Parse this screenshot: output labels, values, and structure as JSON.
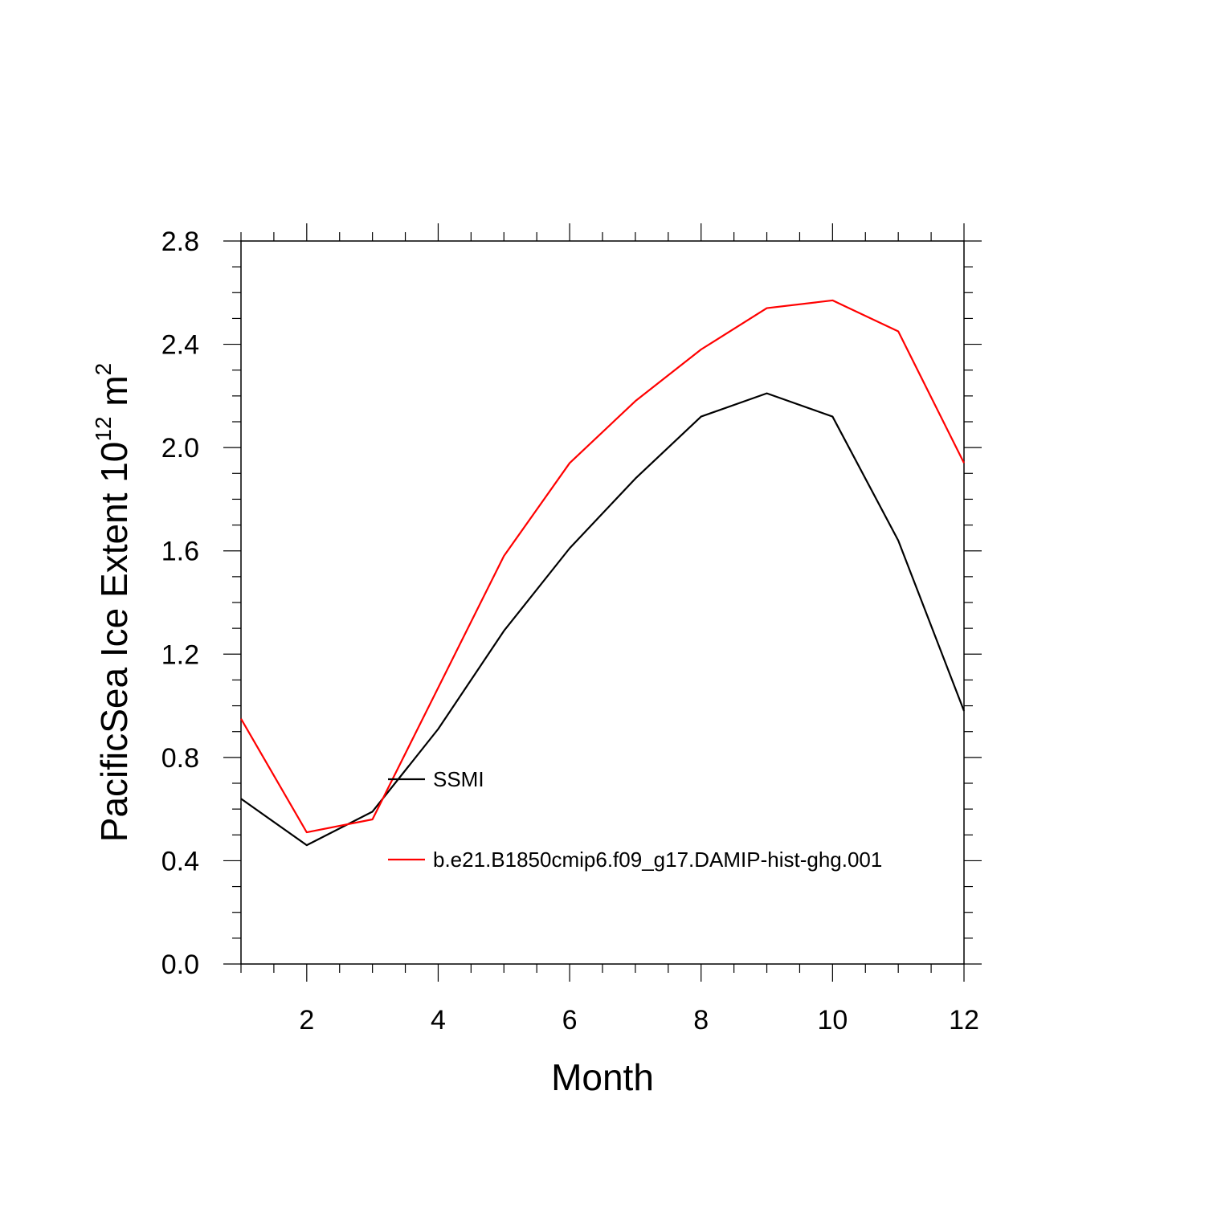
{
  "chart_data": {
    "type": "line",
    "xlabel": "Month",
    "ylabel": {
      "prefix": "PacificSea Ice Extent 10",
      "exp1": "12",
      "unit": " m",
      "exp2": "2"
    },
    "xlim": [
      1,
      12
    ],
    "ylim": [
      0.0,
      2.8
    ],
    "x_ticks": [
      2,
      4,
      6,
      8,
      10,
      12
    ],
    "x_tick_labels": [
      "2",
      "4",
      "6",
      "8",
      "10",
      "12"
    ],
    "y_ticks": [
      0.0,
      0.4,
      0.8,
      1.2,
      1.6,
      2.0,
      2.4,
      2.8
    ],
    "y_tick_labels": [
      "0.0",
      "0.4",
      "0.8",
      "1.2",
      "1.6",
      "2.0",
      "2.4",
      "2.8"
    ],
    "grid": false,
    "legend_placement": "inside-lower-middle",
    "x": [
      1,
      2,
      3,
      4,
      5,
      6,
      7,
      8,
      9,
      10,
      11,
      12
    ],
    "series": [
      {
        "name": "SSMI",
        "color": "#000000",
        "values": [
          0.64,
          0.46,
          0.59,
          0.91,
          1.29,
          1.61,
          1.88,
          2.12,
          2.21,
          2.12,
          1.64,
          0.98
        ]
      },
      {
        "name": "b.e21.B1850cmip6.f09_g17.DAMIP-hist-ghg.001",
        "color": "#ff0000",
        "values": [
          0.95,
          0.51,
          0.56,
          1.07,
          1.58,
          1.94,
          2.18,
          2.38,
          2.54,
          2.57,
          2.45,
          1.94
        ]
      }
    ]
  }
}
